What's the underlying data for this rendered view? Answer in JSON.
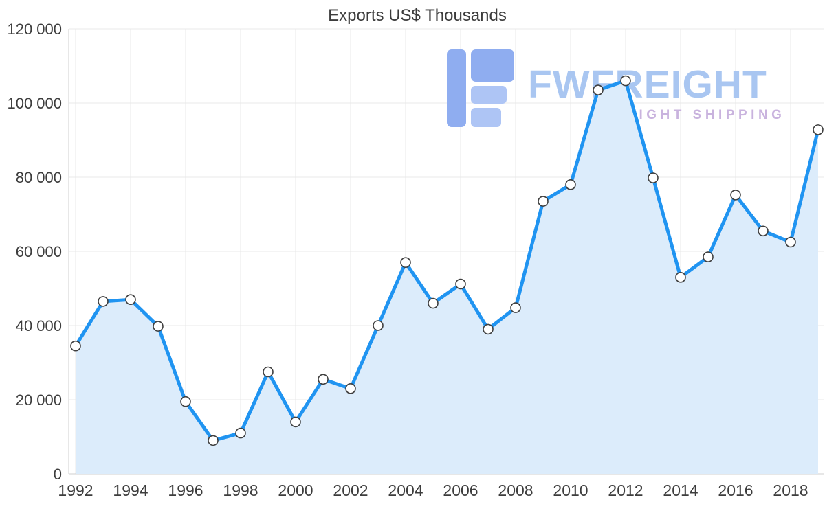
{
  "page": {
    "background": "#ffffff"
  },
  "chart_data": {
    "type": "area",
    "title": "Exports US$ Thousands",
    "x": [
      1992,
      1993,
      1994,
      1995,
      1996,
      1997,
      1998,
      1999,
      2000,
      2001,
      2002,
      2003,
      2004,
      2005,
      2006,
      2007,
      2008,
      2009,
      2010,
      2011,
      2012,
      2013,
      2014,
      2015,
      2016,
      2017,
      2018,
      2019
    ],
    "series": [
      {
        "name": "Exports US$ Thousands",
        "values": [
          34500,
          46500,
          47000,
          39800,
          19500,
          9000,
          11000,
          27500,
          14000,
          25500,
          23000,
          40000,
          57000,
          46000,
          51200,
          39000,
          44800,
          73500,
          78000,
          103500,
          106000,
          79800,
          53000,
          58500,
          75200,
          65500,
          62500,
          92800
        ]
      }
    ],
    "ylim": [
      0,
      120000
    ],
    "ytick_step": 20000,
    "ytick_labels": [
      "0",
      "20 000",
      "40 000",
      "60 000",
      "80 000",
      "100 000",
      "120 000"
    ],
    "xtick_years": [
      1992,
      1994,
      1996,
      1998,
      2000,
      2002,
      2004,
      2006,
      2008,
      2010,
      2012,
      2014,
      2016,
      2018
    ],
    "grid": true,
    "legend": "none",
    "marker_shape": "circle",
    "colors": {
      "line": "#2094f1",
      "fill": "#dcecfb",
      "marker_fill": "#ffffff",
      "marker_stroke": "#3f3f3f",
      "grid": "#e8e8e8",
      "axis": "#cfcfcf",
      "text": "#3d3d3d",
      "title": "#3c3c3c"
    }
  },
  "watermark": {
    "brand": "FWFREIGHT",
    "tagline": "FREIGHT SHIPPING",
    "colors": {
      "mark_dark": "#8fadf0",
      "mark_light": "#aec5f5",
      "brand_text": "#a9c6f1",
      "tagline_text": "#c9b3de"
    }
  }
}
